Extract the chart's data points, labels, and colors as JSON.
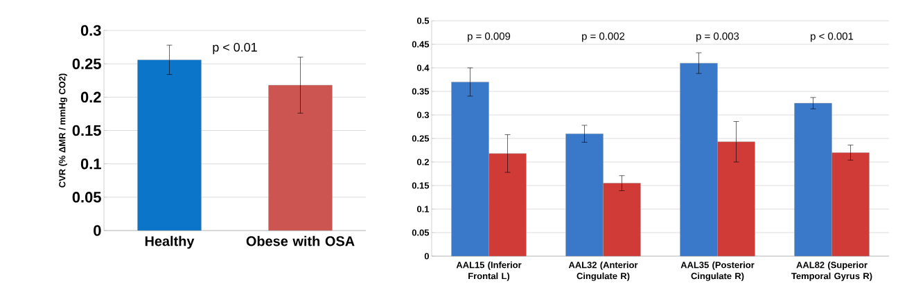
{
  "chart_data": [
    {
      "type": "bar",
      "ylabel": "CVR (% ΔMR / mmHg CO2)",
      "categories": [
        "Healthy",
        "Obese with OSA"
      ],
      "values": [
        0.256,
        0.218
      ],
      "colors": [
        "#0a75c9",
        "#cc5552"
      ],
      "errors": [
        0.022,
        0.042
      ],
      "ylim": [
        0,
        0.3
      ],
      "yticks": [
        0,
        0.05,
        0.1,
        0.15,
        0.2,
        0.25,
        0.3
      ],
      "grid": "y",
      "annotations": [
        "p < 0.01"
      ]
    },
    {
      "type": "bar",
      "categories": [
        "AAL15 (Inferior Frontal L)",
        "AAL32 (Anterior Cingulate R)",
        "AAL35 (Posterior Cingulate R)",
        "AAL82 (Superior Temporal Gyrus R)"
      ],
      "series": [
        {
          "color": "#3a78c9",
          "values": [
            0.37,
            0.26,
            0.41,
            0.325
          ],
          "errors": [
            0.03,
            0.018,
            0.022,
            0.012
          ]
        },
        {
          "color": "#d03b37",
          "values": [
            0.218,
            0.155,
            0.243,
            0.22
          ],
          "errors": [
            0.04,
            0.016,
            0.043,
            0.016
          ]
        }
      ],
      "ylim": [
        0,
        0.5
      ],
      "yticks": [
        0,
        0.05,
        0.1,
        0.15,
        0.2,
        0.25,
        0.3,
        0.35,
        0.4,
        0.45,
        0.5
      ],
      "grid": "y",
      "annotations": [
        "p = 0.009",
        "p = 0.002",
        "p = 0.003",
        "p < 0.001"
      ]
    }
  ]
}
